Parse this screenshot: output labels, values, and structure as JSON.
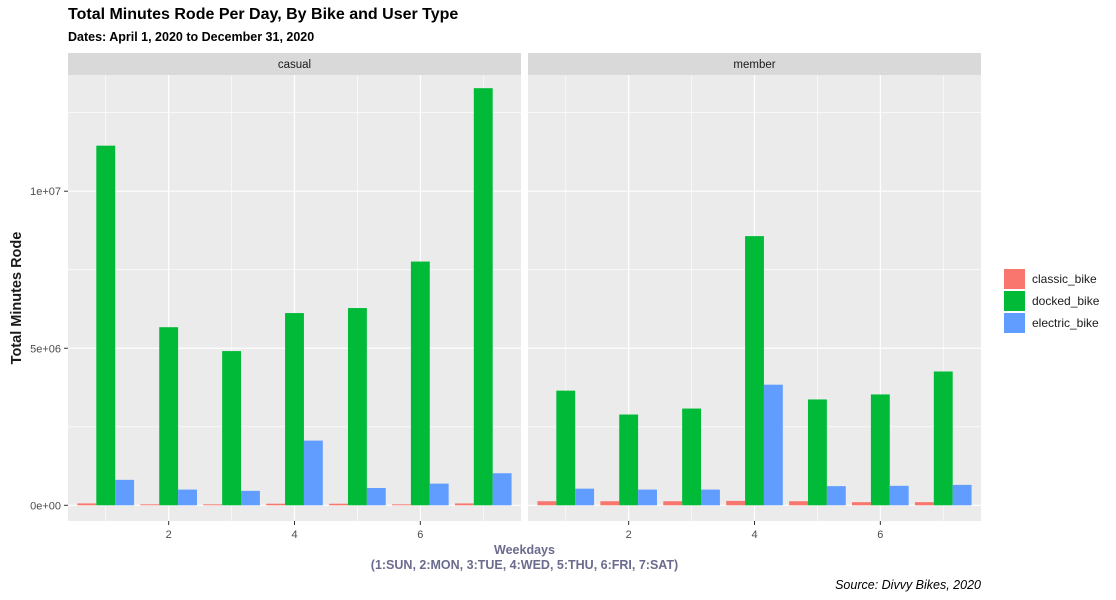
{
  "chart_data": {
    "type": "bar",
    "title": "Total Minutes Rode Per Day, By Bike and User Type",
    "subtitle": "Dates: April 1, 2020 to December 31, 2020",
    "ylabel": "Total Minutes Rode",
    "xlabel_line1": "Weekdays",
    "xlabel_line2": "(1:SUN, 2:MON, 3:TUE, 4:WED, 5:THU, 6:FRI, 7:SAT)",
    "caption": "Source: Divvy Bikes, 2020",
    "ylim": [
      0,
      13700000
    ],
    "y_ticks": [
      0,
      5000000,
      10000000
    ],
    "y_tick_labels": [
      "0e+00",
      "5e+06",
      "1e+07"
    ],
    "x_ticks": [
      2,
      4,
      6
    ],
    "x_tick_labels": [
      "2",
      "4",
      "6"
    ],
    "grid": true,
    "legend_position": "right",
    "categories": [
      1,
      2,
      3,
      4,
      5,
      6,
      7
    ],
    "series": [
      {
        "name": "classic_bike",
        "color": "#F8766D"
      },
      {
        "name": "docked_bike",
        "color": "#00BA38"
      },
      {
        "name": "electric_bike",
        "color": "#619CFF"
      }
    ],
    "facets": [
      {
        "label": "casual",
        "values": {
          "classic_bike": [
            60000,
            30000,
            30000,
            50000,
            50000,
            30000,
            60000
          ],
          "docked_bike": [
            11450000,
            5670000,
            4910000,
            6120000,
            6280000,
            7760000,
            13280000
          ],
          "electric_bike": [
            810000,
            500000,
            460000,
            2060000,
            550000,
            690000,
            1020000
          ]
        }
      },
      {
        "label": "member",
        "values": {
          "classic_bike": [
            130000,
            130000,
            130000,
            140000,
            130000,
            100000,
            100000
          ],
          "docked_bike": [
            3650000,
            2890000,
            3080000,
            8570000,
            3370000,
            3530000,
            4260000
          ],
          "electric_bike": [
            530000,
            500000,
            500000,
            3840000,
            610000,
            620000,
            650000
          ]
        }
      }
    ]
  }
}
